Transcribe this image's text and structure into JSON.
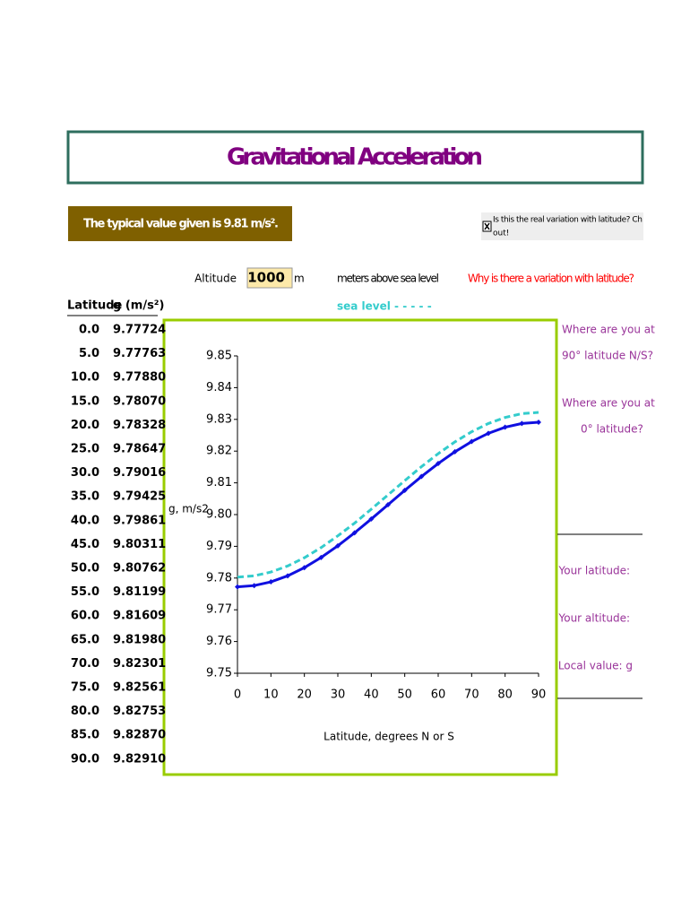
{
  "header": {
    "title": "Gravitational Acceleration"
  },
  "note": "The typical value given is 9.81 m/s².",
  "checkbox": {
    "checked": true,
    "lines": [
      "Is    this the real variation with latitude? Ch",
      "out!"
    ]
  },
  "altitude": {
    "label": "Altitude",
    "value": "1000",
    "unit": "m",
    "description": "meters above sea level"
  },
  "link": "Why is there a variation with latitude?",
  "table": {
    "columns": [
      "Latitude",
      "g (m/s²)"
    ],
    "rows": [
      [
        "0.0",
        "9.77724"
      ],
      [
        "5.0",
        "9.77763"
      ],
      [
        "10.0",
        "9.77880"
      ],
      [
        "15.0",
        "9.78070"
      ],
      [
        "20.0",
        "9.78328"
      ],
      [
        "25.0",
        "9.78647"
      ],
      [
        "30.0",
        "9.79016"
      ],
      [
        "35.0",
        "9.79425"
      ],
      [
        "40.0",
        "9.79861"
      ],
      [
        "45.0",
        "9.80311"
      ],
      [
        "50.0",
        "9.80762"
      ],
      [
        "55.0",
        "9.81199"
      ],
      [
        "60.0",
        "9.81609"
      ],
      [
        "65.0",
        "9.81980"
      ],
      [
        "70.0",
        "9.82301"
      ],
      [
        "75.0",
        "9.82561"
      ],
      [
        "80.0",
        "9.82753"
      ],
      [
        "85.0",
        "9.82870"
      ],
      [
        "90.0",
        "9.82910"
      ]
    ]
  },
  "prompts": [
    "Where are you at",
    "90° latitude N/S?",
    "Where are you at",
    "0° latitude?"
  ],
  "inputs": [
    "Your latitude:",
    "Your altitude:",
    "Local value: g"
  ],
  "chart_data": {
    "type": "line",
    "xlabel": "Latitude, degrees N or S",
    "ylabel": "g, m/s2",
    "x": [
      0,
      5,
      10,
      15,
      20,
      25,
      30,
      35,
      40,
      45,
      50,
      55,
      60,
      65,
      70,
      75,
      80,
      85,
      90
    ],
    "series": [
      {
        "color": "#1010e0",
        "marker": "diamond",
        "values": [
          9.77724,
          9.77763,
          9.7788,
          9.7807,
          9.78328,
          9.78647,
          9.79016,
          9.79425,
          9.79861,
          9.80311,
          9.80762,
          9.81199,
          9.81609,
          9.8198,
          9.82301,
          9.82561,
          9.82753,
          9.8287,
          9.8291
        ]
      },
      {
        "name": "sea level - - - - -",
        "color": "#33cccc",
        "dashed": true,
        "values": [
          9.7803,
          9.7807,
          9.7819,
          9.7838,
          9.7864,
          9.7896,
          9.7933,
          9.7973,
          9.8017,
          9.8062,
          9.8107,
          9.8151,
          9.8192,
          9.8229,
          9.8261,
          9.8287,
          9.8306,
          9.8318,
          9.8322
        ]
      }
    ],
    "xlim": [
      0,
      90
    ],
    "ylim": [
      9.75,
      9.85
    ],
    "xticks": [
      0,
      10,
      20,
      30,
      40,
      50,
      60,
      70,
      80,
      90
    ],
    "yticks": [
      9.75,
      9.76,
      9.77,
      9.78,
      9.79,
      {
        "value": 9.8,
        "label": "9.80"
      },
      9.81,
      9.82,
      9.83,
      9.84,
      9.85
    ]
  }
}
